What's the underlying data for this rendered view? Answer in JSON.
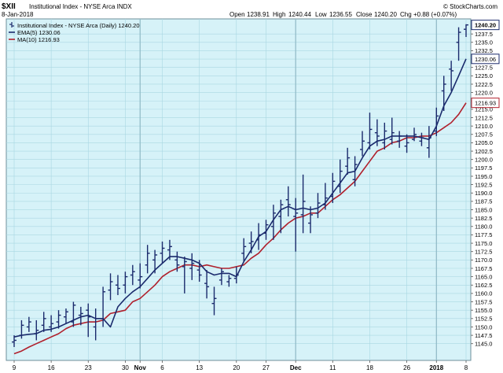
{
  "header": {
    "symbol": "$XII",
    "name": "Institutional Index - NYSE Arca  INDX",
    "date": "8-Jan-2018",
    "open_label": "Open",
    "open": "1238.91",
    "high_label": "High",
    "high": "1240.44",
    "low_label": "Low",
    "low": "1236.55",
    "close_label": "Close",
    "close": "1240.20",
    "chg_label": "Chg",
    "chg": "+0.88 (+0.07%)",
    "credit": "© StockCharts.com"
  },
  "legend": [
    {
      "label": "Institutional Index - NYSE Arca (Daily) 1240.20",
      "color": "#1a2a6c",
      "kind": "bar"
    },
    {
      "label": "EMA(5) 1230.06",
      "color": "#1a2a6c",
      "kind": "line"
    },
    {
      "label": "MA(10) 1216.93",
      "color": "#b0202c",
      "kind": "line"
    }
  ],
  "price_tags": [
    {
      "value": "1240.20",
      "y": 1240.2,
      "color": "#1a2a6c",
      "bold": true
    },
    {
      "value": "1230.06",
      "y": 1230.06,
      "color": "#1a2a6c",
      "bold": false
    },
    {
      "value": "1216.93",
      "y": 1216.93,
      "color": "#b0202c",
      "bold": false
    }
  ],
  "colors": {
    "plot_bg": "#d6f2f8",
    "grid": "#a9d7e2",
    "price": "#1a2a6c",
    "ema": "#1a2a6c",
    "ma": "#b0202c"
  },
  "chart_data": {
    "type": "ohlc",
    "ylim": [
      1140,
      1242
    ],
    "y_ticks": [
      1145,
      1147.5,
      1150,
      1152.5,
      1155,
      1157.5,
      1160,
      1162.5,
      1165,
      1167.5,
      1170,
      1172.5,
      1175,
      1177.5,
      1180,
      1182.5,
      1185,
      1187.5,
      1190,
      1192.5,
      1195,
      1197.5,
      1200,
      1202.5,
      1205,
      1207.5,
      1210,
      1212.5,
      1215,
      1217.5,
      1220,
      1222.5,
      1225,
      1227.5,
      1230,
      1232.5,
      1235,
      1237.5
    ],
    "x_ticks": [
      {
        "label": "9",
        "index": 0,
        "bold": false
      },
      {
        "label": "16",
        "index": 5,
        "bold": false
      },
      {
        "label": "23",
        "index": 10,
        "bold": false
      },
      {
        "label": "30",
        "index": 15,
        "bold": false
      },
      {
        "label": "Nov",
        "index": 17,
        "bold": true
      },
      {
        "label": "6",
        "index": 20,
        "bold": false
      },
      {
        "label": "13",
        "index": 25,
        "bold": false
      },
      {
        "label": "20",
        "index": 30,
        "bold": false
      },
      {
        "label": "27",
        "index": 34,
        "bold": false
      },
      {
        "label": "Dec",
        "index": 38,
        "bold": true
      },
      {
        "label": "11",
        "index": 43,
        "bold": false
      },
      {
        "label": "18",
        "index": 48,
        "bold": false
      },
      {
        "label": "26",
        "index": 53,
        "bold": false
      },
      {
        "label": "2018",
        "index": 57,
        "bold": true
      },
      {
        "label": "8",
        "index": 61,
        "bold": false
      }
    ],
    "month_lines": [
      17,
      38,
      57
    ],
    "ohlc": [
      [
        1145.5,
        1147.5,
        1144.0,
        1146.0
      ],
      [
        1147.5,
        1152.0,
        1146.5,
        1150.5
      ],
      [
        1150.0,
        1153.0,
        1148.5,
        1151.5
      ],
      [
        1148.0,
        1152.0,
        1146.0,
        1149.0
      ],
      [
        1150.5,
        1154.5,
        1148.5,
        1152.5
      ],
      [
        1150.0,
        1153.5,
        1148.5,
        1151.0
      ],
      [
        1151.5,
        1155.0,
        1149.5,
        1153.5
      ],
      [
        1153.0,
        1155.5,
        1151.0,
        1154.5
      ],
      [
        1151.5,
        1157.5,
        1150.0,
        1156.5
      ],
      [
        1153.5,
        1156.0,
        1150.5,
        1154.0
      ],
      [
        1155.0,
        1157.0,
        1147.0,
        1153.0
      ],
      [
        1150.0,
        1155.5,
        1146.0,
        1152.5
      ],
      [
        1152.5,
        1162.0,
        1150.0,
        1160.5
      ],
      [
        1161.0,
        1166.0,
        1158.0,
        1163.5
      ],
      [
        1162.5,
        1165.5,
        1159.5,
        1161.5
      ],
      [
        1162.5,
        1166.5,
        1160.0,
        1165.0
      ],
      [
        1165.5,
        1168.5,
        1162.5,
        1166.5
      ],
      [
        1164.0,
        1169.0,
        1161.5,
        1165.0
      ],
      [
        1168.5,
        1174.5,
        1166.0,
        1172.0
      ],
      [
        1170.0,
        1173.0,
        1166.0,
        1171.5
      ],
      [
        1172.0,
        1175.5,
        1169.0,
        1173.5
      ],
      [
        1173.0,
        1176.0,
        1170.0,
        1174.0
      ],
      [
        1170.0,
        1172.5,
        1166.5,
        1168.5
      ],
      [
        1168.0,
        1171.0,
        1160.0,
        1169.5
      ],
      [
        1167.5,
        1172.0,
        1164.0,
        1169.0
      ],
      [
        1167.0,
        1170.0,
        1163.5,
        1165.5
      ],
      [
        1163.0,
        1167.0,
        1158.5,
        1162.0
      ],
      [
        1157.0,
        1162.0,
        1153.5,
        1158.5
      ],
      [
        1164.0,
        1167.5,
        1162.5,
        1166.5
      ],
      [
        1163.5,
        1165.5,
        1162.0,
        1164.5
      ],
      [
        1164.5,
        1168.0,
        1163.0,
        1165.5
      ],
      [
        1172.0,
        1176.5,
        1169.5,
        1174.0
      ],
      [
        1175.0,
        1178.5,
        1172.0,
        1175.5
      ],
      [
        1176.0,
        1181.0,
        1173.0,
        1177.5
      ],
      [
        1178.0,
        1182.0,
        1176.0,
        1180.5
      ],
      [
        1180.0,
        1186.5,
        1176.0,
        1184.0
      ],
      [
        1183.0,
        1188.0,
        1178.0,
        1186.5
      ],
      [
        1188.0,
        1192.0,
        1183.0,
        1186.5
      ],
      [
        1183.0,
        1188.5,
        1172.5,
        1184.0
      ],
      [
        1183.5,
        1195.5,
        1178.0,
        1187.5
      ],
      [
        1181.0,
        1186.0,
        1178.0,
        1183.5
      ],
      [
        1184.0,
        1190.0,
        1182.5,
        1187.0
      ],
      [
        1186.5,
        1193.0,
        1185.0,
        1188.5
      ],
      [
        1189.0,
        1196.0,
        1187.0,
        1193.5
      ],
      [
        1192.0,
        1200.0,
        1190.0,
        1196.5
      ],
      [
        1198.0,
        1203.5,
        1195.5,
        1200.5
      ],
      [
        1194.0,
        1201.0,
        1192.0,
        1198.5
      ],
      [
        1203.0,
        1208.5,
        1201.0,
        1205.5
      ],
      [
        1205.0,
        1214.0,
        1203.0,
        1209.0
      ],
      [
        1208.0,
        1212.0,
        1204.0,
        1207.0
      ],
      [
        1205.0,
        1211.0,
        1203.0,
        1208.5
      ],
      [
        1206.0,
        1212.5,
        1204.5,
        1208.0
      ],
      [
        1205.5,
        1208.5,
        1203.5,
        1207.0
      ],
      [
        1204.0,
        1207.5,
        1202.0,
        1205.0
      ],
      [
        1206.0,
        1209.5,
        1205.5,
        1207.5
      ],
      [
        1205.5,
        1208.0,
        1204.0,
        1206.5
      ],
      [
        1203.5,
        1210.0,
        1200.5,
        1206.5
      ],
      [
        1208.5,
        1215.5,
        1207.0,
        1213.0
      ],
      [
        1220.5,
        1225.0,
        1214.5,
        1222.5
      ],
      [
        1227.0,
        1229.5,
        1220.5,
        1226.5
      ],
      [
        1235.0,
        1239.5,
        1229.5,
        1238.0
      ],
      [
        1238.9,
        1240.4,
        1236.6,
        1240.2
      ]
    ],
    "ema5": [
      1147.0,
      1147.5,
      1147.8,
      1148.0,
      1149.0,
      1149.3,
      1150.0,
      1151.0,
      1152.0,
      1153.0,
      1153.5,
      1152.5,
      1152.5,
      1150.0,
      1156.0,
      1158.5,
      1160.5,
      1162.0,
      1164.5,
      1167.0,
      1169.0,
      1171.0,
      1171.0,
      1170.5,
      1170.0,
      1169.0,
      1166.5,
      1165.5,
      1166.0,
      1166.0,
      1165.0,
      1169.5,
      1173.0,
      1177.0,
      1178.5,
      1182.0,
      1185.0,
      1186.0,
      1185.0,
      1185.5,
      1185.0,
      1185.5,
      1187.0,
      1190.0,
      1193.0,
      1196.0,
      1196.5,
      1200.5,
      1204.0,
      1205.5,
      1206.0,
      1207.0,
      1207.0,
      1207.0,
      1207.0,
      1206.5,
      1206.0,
      1210.0,
      1216.0,
      1220.0,
      1225.0,
      1230.06
    ],
    "ma10": [
      1142.0,
      1142.8,
      1144.0,
      1145.0,
      1146.0,
      1147.0,
      1148.0,
      1149.5,
      1150.5,
      1151.0,
      1151.5,
      1151.5,
      1152.0,
      1154.0,
      1154.5,
      1155.0,
      1157.5,
      1158.5,
      1160.5,
      1162.5,
      1165.0,
      1166.5,
      1167.5,
      1168.5,
      1168.5,
      1168.0,
      1168.5,
      1168.0,
      1167.5,
      1167.5,
      1168.0,
      1168.5,
      1170.5,
      1172.0,
      1174.5,
      1176.5,
      1179.0,
      1181.0,
      1182.5,
      1183.0,
      1184.0,
      1184.0,
      1186.0,
      1188.0,
      1189.5,
      1191.5,
      1193.5,
      1196.5,
      1199.5,
      1202.5,
      1203.5,
      1205.0,
      1205.5,
      1206.5,
      1206.5,
      1207.0,
      1207.0,
      1208.0,
      1209.5,
      1211.0,
      1213.5,
      1216.93
    ]
  }
}
